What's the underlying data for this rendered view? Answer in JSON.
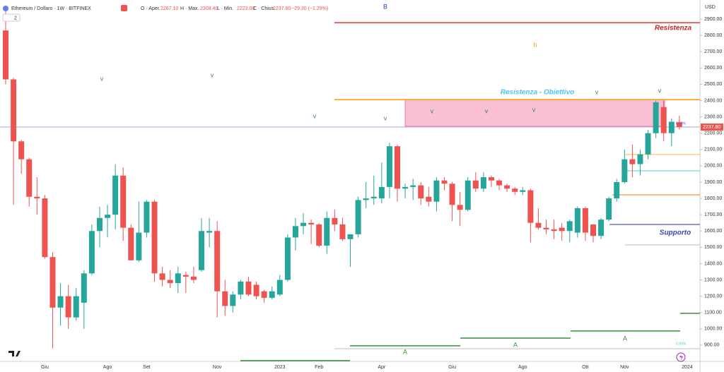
{
  "chart_data": {
    "type": "candlestick",
    "header": {
      "symbol": "Ethereum / Dollaro · 1W · BITFINEX",
      "pane": "2",
      "fields": [
        {
          "label": "O · Aper.",
          "value": "2267.10"
        },
        {
          "label": "H · Max.",
          "value": "2308.40"
        },
        {
          "label": "L · Min.",
          "value": "2223.00"
        },
        {
          "label": "C · Chius.",
          "value": "2237.80"
        }
      ],
      "change": "−29.30 (−1.29%)"
    },
    "y_unit": "USD",
    "last_price_label": "2237.80",
    "up_color": "#26a69a",
    "down_color": "#ef5350",
    "grid": false,
    "categories": [
      null,
      null,
      null,
      null,
      null,
      "Giu",
      null,
      null,
      null,
      null,
      null,
      null,
      null,
      "Ago",
      null,
      null,
      null,
      null,
      "Set",
      null,
      null,
      null,
      null,
      null,
      null,
      null,
      null,
      "Nov",
      null,
      null,
      null,
      null,
      null,
      null,
      null,
      "2023",
      null,
      null,
      null,
      null,
      "Feb",
      null,
      null,
      null,
      null,
      null,
      null,
      null,
      "Apr",
      null,
      null,
      null,
      null,
      null,
      null,
      null,
      null,
      "Giu",
      null,
      null,
      null,
      null,
      null,
      null,
      null,
      null,
      "Ago",
      null,
      null,
      null,
      null,
      null,
      null,
      null,
      "Ott",
      null,
      null,
      null,
      null,
      "Nov",
      null,
      null,
      null,
      null,
      null,
      null,
      null,
      "2024"
    ],
    "open": [
      2830,
      2530,
      2150,
      2040,
      1810,
      1800,
      1440,
      1130,
      1200,
      1070,
      1160,
      1340,
      1600,
      1680,
      1700,
      1940,
      1620,
      1420,
      1590,
      1780,
      1340,
      1300,
      1280,
      1330,
      1320,
      1360,
      1590,
      1600,
      1230,
      1140,
      1210,
      1290,
      1270,
      1230,
      1190,
      1210,
      1300,
      1560,
      1630,
      1650,
      1640,
      1510,
      1680,
      1640,
      1550,
      1580,
      1790,
      1800,
      1800,
      1870,
      2120,
      1860,
      1870,
      1880,
      1810,
      1780,
      1910,
      1890,
      1760,
      1730,
      1910,
      1860,
      1930,
      1910,
      1880,
      1860,
      1840,
      1850,
      1650,
      1620,
      1610,
      1620,
      1600,
      1590,
      1740,
      1640,
      1570,
      1670,
      1800,
      1900,
      2040,
      2010,
      2070,
      2200,
      2360,
      2200,
      2267.1,
      null
    ],
    "high": [
      2970,
      2540,
      2160,
      2050,
      1930,
      1820,
      1470,
      1280,
      1270,
      1250,
      1360,
      1640,
      1750,
      1760,
      2010,
      1990,
      1640,
      1780,
      1790,
      1790,
      1380,
      1360,
      1380,
      1350,
      1380,
      1680,
      1680,
      1660,
      1300,
      1230,
      1300,
      1320,
      1290,
      1240,
      1260,
      1330,
      1580,
      1680,
      1710,
      1670,
      1650,
      1720,
      1730,
      1680,
      1580,
      1810,
      1900,
      1940,
      2020,
      2140,
      2130,
      1890,
      1920,
      1900,
      1870,
      1930,
      1930,
      1900,
      1840,
      1930,
      1960,
      1960,
      1940,
      1920,
      1890,
      1870,
      1870,
      1860,
      1740,
      1670,
      1670,
      1650,
      1670,
      1750,
      1750,
      1640,
      1680,
      1810,
      1920,
      2100,
      2130,
      2100,
      2220,
      2400,
      2400,
      2290,
      2308.4,
      null
    ],
    "low": [
      2500,
      1760,
      1950,
      1750,
      1700,
      1430,
      880,
      1020,
      1000,
      1050,
      1000,
      1330,
      1500,
      1560,
      1610,
      1540,
      1420,
      1410,
      1560,
      1290,
      1260,
      1250,
      1220,
      1220,
      1280,
      1350,
      1500,
      1070,
      1080,
      1100,
      1180,
      1200,
      1180,
      1160,
      1180,
      1200,
      1290,
      1480,
      1580,
      1520,
      1500,
      1460,
      1600,
      1540,
      1380,
      1560,
      1740,
      1760,
      1770,
      1800,
      1780,
      1800,
      1790,
      1760,
      1750,
      1720,
      1850,
      1660,
      1630,
      1720,
      1840,
      1840,
      1870,
      1850,
      1840,
      1820,
      1820,
      1530,
      1610,
      1580,
      1550,
      1540,
      1530,
      1560,
      1540,
      1530,
      1550,
      1660,
      1780,
      1890,
      1930,
      1940,
      2040,
      2170,
      2150,
      2120,
      2223,
      null
    ],
    "close": [
      2530,
      2150,
      2040,
      1810,
      1800,
      1440,
      1130,
      1200,
      1070,
      1200,
      1340,
      1600,
      1680,
      1700,
      1940,
      1620,
      1420,
      1590,
      1780,
      1340,
      1300,
      1280,
      1340,
      1320,
      1300,
      1600,
      1600,
      1230,
      1140,
      1210,
      1290,
      1210,
      1200,
      1190,
      1230,
      1300,
      1560,
      1630,
      1650,
      1640,
      1510,
      1680,
      1640,
      1550,
      1580,
      1790,
      1800,
      1810,
      1870,
      2120,
      1860,
      1870,
      1880,
      1800,
      1780,
      1910,
      1890,
      1760,
      1730,
      1910,
      1860,
      1930,
      1910,
      1880,
      1860,
      1840,
      1850,
      1650,
      1620,
      1610,
      1600,
      1600,
      1660,
      1740,
      1590,
      1570,
      1670,
      1800,
      1900,
      2040,
      2010,
      2070,
      2200,
      2390,
      2200,
      2270,
      2237.8,
      null
    ],
    "ylim": [
      800,
      3017
    ],
    "yticks": [
      {
        "value": 900,
        "label": "900.00"
      },
      {
        "value": 1000,
        "label": "1000.00"
      },
      {
        "value": 1100,
        "label": "1100.00"
      },
      {
        "value": 1200,
        "label": "1200.00"
      },
      {
        "value": 1300,
        "label": "1300.00"
      },
      {
        "value": 1400,
        "label": "1400.00"
      },
      {
        "value": 1500,
        "label": "1500.00"
      },
      {
        "value": 1600,
        "label": "1600.00"
      },
      {
        "value": 1700,
        "label": "1700.00"
      },
      {
        "value": 1800,
        "label": "1800.00"
      },
      {
        "value": 1900,
        "label": "1900.00"
      },
      {
        "value": 2000,
        "label": "2000.00"
      },
      {
        "value": 2100,
        "label": "2100.00"
      },
      {
        "value": 2200,
        "label": "2200.00"
      },
      {
        "value": 2300,
        "label": "2300.00"
      },
      {
        "value": 2400,
        "label": "2400.00"
      },
      {
        "value": 2500,
        "label": "2500.00"
      },
      {
        "value": 2600,
        "label": "2600.00"
      },
      {
        "value": 2700,
        "label": "2700.00"
      },
      {
        "value": 2800,
        "label": "2800.00"
      },
      {
        "value": 2900,
        "label": "2900.00"
      }
    ],
    "levels": [
      {
        "price": 2878,
        "color": "#e53935"
      },
      {
        "price": 2406,
        "color": "#ff9800"
      },
      {
        "price": 2238,
        "color": "#b39ddb"
      },
      {
        "price": 2069,
        "color": "#ffb74d"
      },
      {
        "price": 1969,
        "color": "#4dd0c4"
      },
      {
        "price": 1822,
        "color": "#f57c00"
      },
      {
        "price": 1640,
        "color": "#283593"
      },
      {
        "price": 1515,
        "color": "#bdbdbd"
      },
      {
        "price": 1095,
        "color": "#388e3c"
      },
      {
        "price": 987,
        "color": "#388e3c"
      },
      {
        "price": 943,
        "color": "#388e3c"
      },
      {
        "price": 896,
        "color": "#388e3c"
      },
      {
        "price": 878,
        "color": "#bdbdbd"
      },
      {
        "price": 805,
        "color": "#388e3c"
      }
    ],
    "zone": {
      "top": 2406,
      "bottom": 2242,
      "color": "#f06292"
    },
    "level_texts": [
      {
        "text": "Resistenza",
        "color": "#c62828"
      },
      {
        "text": "Resistenza - Obiettivo",
        "color": "#4fc3f7"
      },
      {
        "text": "Supporto",
        "color": "#3949ab"
      }
    ],
    "wave_labels": [
      {
        "text": "B",
        "color": "#1e40af"
      },
      {
        "text": "b",
        "color": "#f5a623"
      },
      {
        "text": "v",
        "color": "#388e3c"
      },
      {
        "text": "v",
        "color": "#388e3c"
      },
      {
        "text": "v",
        "color": "#388e3c"
      },
      {
        "text": "v",
        "color": "#388e3c"
      },
      {
        "text": "v",
        "color": "#388e3c"
      },
      {
        "text": "v",
        "color": "#388e3c"
      },
      {
        "text": "v",
        "color": "#388e3c"
      },
      {
        "text": "v",
        "color": "#388e3c"
      },
      {
        "text": "v",
        "color": "#388e3c"
      },
      {
        "text": "A",
        "color": "#388e3c"
      },
      {
        "text": "A",
        "color": "#388e3c"
      },
      {
        "text": "A",
        "color": "#388e3c"
      }
    ],
    "fib_labels": [
      "0.00%",
      "0.00%"
    ]
  }
}
